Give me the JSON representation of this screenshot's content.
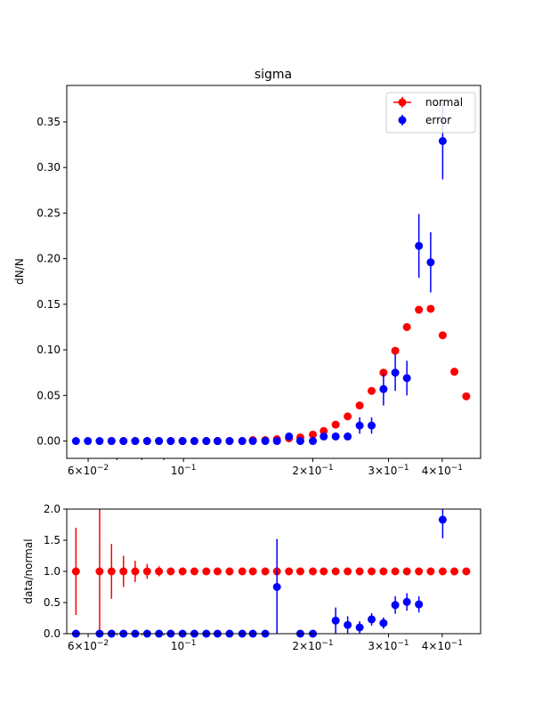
{
  "chart_data": [
    {
      "type": "scatter",
      "title": "sigma",
      "xlabel": "",
      "ylabel": "dN/N",
      "x_scale": "log",
      "xlim": [
        0.0535,
        0.4913
      ],
      "ylim": [
        -0.019,
        0.39
      ],
      "yticks": [
        0.0,
        0.05,
        0.1,
        0.15,
        0.2,
        0.25,
        0.3,
        0.35
      ],
      "ytick_labels": [
        "0.00",
        "0.05",
        "0.10",
        "0.15",
        "0.20",
        "0.25",
        "0.30",
        "0.35"
      ],
      "xtick_labels": [
        {
          "x": 0.06,
          "base": "6×10",
          "exp": "−2"
        },
        {
          "x": 0.1,
          "base": "10",
          "exp": "−1"
        },
        {
          "x": 0.2,
          "base": "2×10",
          "exp": "−1"
        },
        {
          "x": 0.3,
          "base": "3×10",
          "exp": "−1"
        },
        {
          "x": 0.4,
          "base": "4×10",
          "exp": "−1"
        }
      ],
      "legend": {
        "placement": "top-right",
        "entries": [
          "normal",
          "error"
        ]
      },
      "grid": false,
      "x": [
        0.0562,
        0.0599,
        0.0638,
        0.068,
        0.0725,
        0.0772,
        0.0823,
        0.0877,
        0.0934,
        0.0995,
        0.106,
        0.113,
        0.12,
        0.128,
        0.137,
        0.145,
        0.155,
        0.165,
        0.176,
        0.187,
        0.2,
        0.212,
        0.226,
        0.241,
        0.257,
        0.274,
        0.292,
        0.311,
        0.331,
        0.353,
        0.376,
        0.401,
        0.427,
        0.455
      ],
      "series": [
        {
          "name": "normal",
          "color": "#ff0000",
          "values": [
            0.0,
            0.0,
            0.0,
            0.0,
            0.0,
            0.0,
            0.0,
            0.0,
            0.0,
            0.0,
            0.0,
            0.0,
            0.001,
            0.001,
            0.002,
            0.003,
            0.004,
            0.007,
            0.011,
            0.018,
            0.027,
            0.039,
            0.055,
            0.075,
            0.099,
            0.125,
            0.144,
            0.145,
            0.116,
            0.076,
            0.049
          ],
          "x_index_offset": 3,
          "errors": [
            0,
            0,
            0,
            0,
            0,
            0,
            0,
            0,
            0,
            0,
            0,
            0,
            0,
            0,
            0,
            0,
            0,
            0,
            0,
            0,
            0,
            0,
            0,
            0,
            0,
            0,
            0,
            0,
            0,
            0,
            0
          ]
        },
        {
          "name": "error",
          "color": "#0000ff",
          "values": [
            0.0,
            0.0,
            0.0,
            0.0,
            0.0,
            0.0,
            0.0,
            0.0,
            0.0,
            0.0,
            0.0,
            0.0,
            0.0,
            0.0,
            0.0,
            0.0,
            0.0,
            0.0,
            0.005,
            0.0,
            0.0,
            0.005,
            0.005,
            0.005,
            0.017,
            0.017,
            0.057,
            0.075,
            0.069,
            0.214,
            0.196,
            0.329
          ],
          "x_index_offset": 0,
          "x_indices": [
            0,
            1,
            2,
            3,
            4,
            5,
            6,
            7,
            8,
            9,
            10,
            11,
            12,
            13,
            14,
            15,
            16,
            17,
            18,
            19,
            20,
            21,
            22,
            23,
            24,
            25,
            26,
            27,
            28,
            29,
            30,
            31
          ],
          "errors": [
            0,
            0,
            0,
            0,
            0,
            0,
            0,
            0,
            0,
            0,
            0,
            0,
            0,
            0,
            0,
            0,
            0,
            0,
            0.004,
            0,
            0,
            0.004,
            0.004,
            0.004,
            0.009,
            0.009,
            0.018,
            0.02,
            0.019,
            0.035,
            0.033,
            0.042
          ]
        }
      ]
    },
    {
      "type": "scatter",
      "title": "",
      "xlabel": "",
      "ylabel": "data/normal",
      "x_scale": "log",
      "xlim": [
        0.0535,
        0.4913
      ],
      "ylim": [
        0.0,
        2.0
      ],
      "yticks": [
        0.0,
        0.5,
        1.0,
        1.5,
        2.0
      ],
      "ytick_labels": [
        "0.0",
        "0.5",
        "1.0",
        "1.5",
        "2.0"
      ],
      "grid": false,
      "series": [
        {
          "name": "normal",
          "color": "#ff0000",
          "x": [
            0.0562,
            0.0638,
            0.068,
            0.0725,
            0.0772,
            0.0823,
            0.0877,
            0.0934,
            0.0995,
            0.106,
            0.113,
            0.12,
            0.128,
            0.137,
            0.145,
            0.155,
            0.165,
            0.176,
            0.187,
            0.2,
            0.212,
            0.226,
            0.241,
            0.257,
            0.274,
            0.292,
            0.311,
            0.331,
            0.353,
            0.376,
            0.401,
            0.427,
            0.455
          ],
          "values": [
            1,
            1,
            1,
            1,
            1,
            1,
            1,
            1,
            1,
            1,
            1,
            1,
            1,
            1,
            1,
            1,
            1,
            1,
            1,
            1,
            1,
            1,
            1,
            1,
            1,
            1,
            1,
            1,
            1,
            1,
            1,
            1,
            1
          ],
          "errors": [
            0.7,
            1.0,
            0.44,
            0.25,
            0.17,
            0.12,
            0.08,
            0,
            0,
            0,
            0,
            0,
            0,
            0,
            0,
            0,
            0,
            0,
            0,
            0,
            0,
            0,
            0,
            0,
            0,
            0,
            0,
            0,
            0,
            0,
            0,
            0,
            0
          ]
        },
        {
          "name": "error",
          "color": "#0000ff",
          "x": [
            0.0562,
            0.0638,
            0.068,
            0.0725,
            0.0772,
            0.0823,
            0.0877,
            0.0934,
            0.0995,
            0.106,
            0.113,
            0.12,
            0.128,
            0.137,
            0.145,
            0.155,
            0.165,
            0.187,
            0.2,
            0.226,
            0.241,
            0.257,
            0.274,
            0.292,
            0.311,
            0.331,
            0.353,
            0.401
          ],
          "values": [
            0,
            0,
            0,
            0,
            0,
            0,
            0,
            0,
            0,
            0,
            0,
            0,
            0,
            0,
            0,
            0,
            0.75,
            0,
            0,
            0.21,
            0.14,
            0.1,
            0.23,
            0.17,
            0.46,
            0.51,
            0.47,
            1.83
          ],
          "errors": [
            0,
            0,
            0,
            0,
            0,
            0,
            0,
            0,
            0,
            0,
            0,
            0,
            0,
            0,
            0,
            0,
            0.77,
            0,
            0,
            0.21,
            0.14,
            0.1,
            0.1,
            0.09,
            0.14,
            0.14,
            0.13,
            0.3
          ]
        }
      ]
    }
  ]
}
